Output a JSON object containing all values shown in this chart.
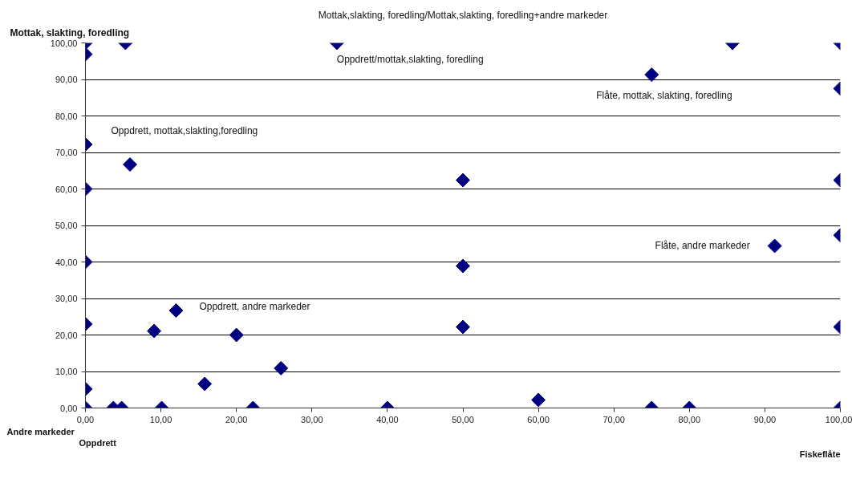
{
  "chart_data": {
    "type": "scatter",
    "xlabel": "Fiskeflåte",
    "ylabel": "Mottak, slakting, foredling",
    "x": [
      0,
      0,
      5.3,
      33.3,
      85.7,
      100,
      75,
      100,
      0,
      5.9,
      0,
      50,
      100,
      100,
      91.3,
      0,
      50,
      0,
      12,
      9.1,
      20,
      50,
      100,
      25.9,
      15.8,
      0,
      60,
      0,
      3.7,
      4.8,
      10.1,
      22.2,
      40,
      75,
      80,
      100
    ],
    "values": [
      100,
      96.9,
      100,
      100,
      100,
      100,
      91.3,
      87.5,
      72.2,
      66.7,
      60,
      62.4,
      62.4,
      47.3,
      44.4,
      40,
      38.9,
      23,
      26.7,
      21.1,
      20,
      22.2,
      22.2,
      10.9,
      6.6,
      5.2,
      2.2,
      0,
      0,
      0,
      0,
      0,
      0,
      0,
      0,
      0
    ],
    "color": "#000080",
    "marker": "diamond",
    "xlim": [
      0,
      100
    ],
    "ylim": [
      0,
      100
    ],
    "xticks": [
      {
        "value": 0,
        "label": "0,00"
      },
      {
        "value": 10,
        "label": "10,00"
      },
      {
        "value": 20,
        "label": "20,00"
      },
      {
        "value": 30,
        "label": "30,00"
      },
      {
        "value": 40,
        "label": "40,00"
      },
      {
        "value": 50,
        "label": "50,00"
      },
      {
        "value": 60,
        "label": "60,00"
      },
      {
        "value": 70,
        "label": "70,00"
      },
      {
        "value": 80,
        "label": "80,00"
      },
      {
        "value": 90,
        "label": "90,00"
      },
      {
        "value": 100,
        "label": "100,00"
      }
    ],
    "yticks": [
      {
        "value": 0,
        "label": "0,00"
      },
      {
        "value": 10,
        "label": "10,00"
      },
      {
        "value": 20,
        "label": "20,00"
      },
      {
        "value": 30,
        "label": "30,00"
      },
      {
        "value": 40,
        "label": "40,00"
      },
      {
        "value": 50,
        "label": "50,00"
      },
      {
        "value": 60,
        "label": "60,00"
      },
      {
        "value": 70,
        "label": "70,00"
      },
      {
        "value": 80,
        "label": "80,00"
      },
      {
        "value": 90,
        "label": "90,00"
      },
      {
        "value": 100,
        "label": "100,00"
      }
    ],
    "grid": "y",
    "annotations": [
      "Mottak,slakting, foredling/Mottak,slakting, foredling+andre markeder",
      {
        "text": "Oppdrett/mottak,slakting, foredling",
        "x": 33.3,
        "y": 100
      },
      {
        "text": "Flåte, mottak, slakting, foredling",
        "x": 75,
        "y": 91.3
      },
      {
        "text": "Oppdrett, mottak,slakting,foredling",
        "x": 0,
        "y": 72.2
      },
      {
        "text": "Flåte, andre markeder",
        "x": 91.3,
        "y": 44.4
      },
      {
        "text": "Oppdrett, andre markeder",
        "x": 12,
        "y": 26.7
      },
      "Andre markeder",
      "Oppdrett"
    ]
  }
}
